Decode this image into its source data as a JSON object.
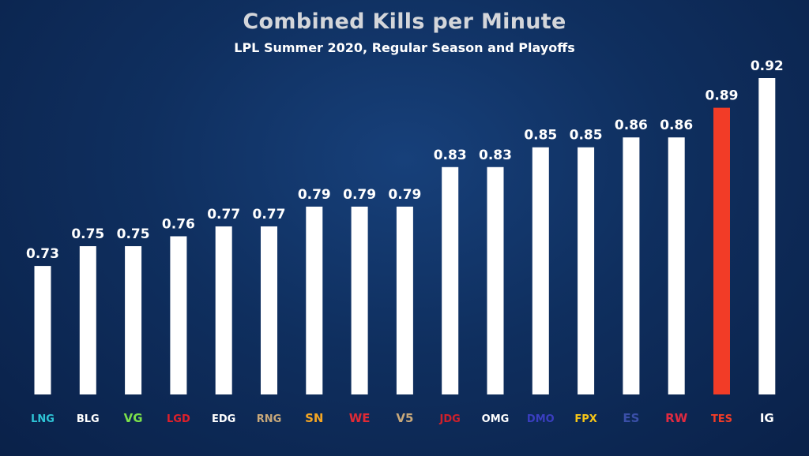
{
  "chart_data": {
    "type": "bar",
    "title": "Combined Kills per Minute",
    "subtitle": "LPL Summer 2020, Regular Season and Playoffs",
    "categories": [
      "LNG",
      "BLG",
      "VG",
      "LGD",
      "EDG",
      "RNG",
      "SN",
      "WE",
      "V5",
      "JDG",
      "OMG",
      "DMO",
      "FPX",
      "ES",
      "RW",
      "TES",
      "IG"
    ],
    "values": [
      0.73,
      0.75,
      0.75,
      0.76,
      0.77,
      0.77,
      0.79,
      0.79,
      0.79,
      0.83,
      0.83,
      0.85,
      0.85,
      0.86,
      0.86,
      0.89,
      0.92
    ],
    "ylim": [
      0.6,
      0.93
    ],
    "grid": false,
    "data_labels": [
      "0.73",
      "0.75",
      "0.75",
      "0.76",
      "0.77",
      "0.77",
      "0.79",
      "0.79",
      "0.79",
      "0.83",
      "0.83",
      "0.85",
      "0.85",
      "0.86",
      "0.86",
      "0.89",
      "0.92"
    ],
    "highlight_index": 15,
    "colors": {
      "bar": "#ffffff",
      "highlight": "#f23c27",
      "background": "#0f2f5f"
    },
    "logo_colors": [
      "#2ec4d6",
      "#ffffff",
      "#7be04a",
      "#e0202a",
      "#ffffff",
      "#c8a87a",
      "#f5a623",
      "#e02a35",
      "#c8a87a",
      "#d0202a",
      "#ffffff",
      "#3a3ec0",
      "#f5c518",
      "#3a4fa8",
      "#e02a40",
      "#f23c27",
      "#ffffff"
    ]
  }
}
